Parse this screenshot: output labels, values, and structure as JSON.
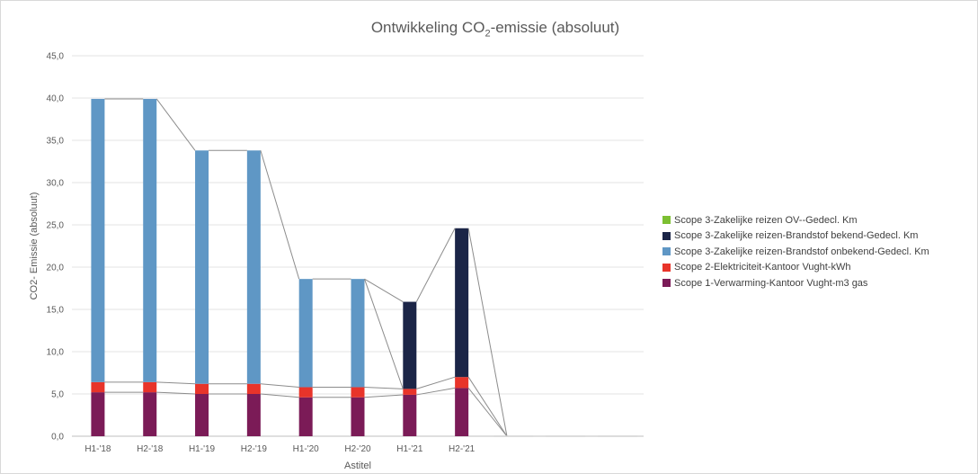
{
  "chart_data": {
    "type": "bar",
    "stacked": true,
    "title_prefix": "Ontwikkeling CO",
    "title_sub": "2",
    "title_suffix": "-emissie (absoluut)",
    "xlabel": "Astitel",
    "ylabel": "CO2- Emissie (absoluut)",
    "ylim": [
      0,
      45
    ],
    "yticks": [
      "0,0",
      "5,0",
      "10,0",
      "15,0",
      "20,0",
      "25,0",
      "30,0",
      "35,0",
      "40,0",
      "45,0"
    ],
    "grid": true,
    "legend_position": "right",
    "categories": [
      "H1-'18",
      "H2-'18",
      "H1-'19",
      "H2-'19",
      "H1-'20",
      "H2-'20",
      "H1-'21",
      "H2-'21",
      "",
      "",
      ""
    ],
    "series": [
      {
        "name": "Scope 1-Verwarming-Kantoor Vught-m3 gas",
        "color": "#7b1b57",
        "values": [
          5.2,
          5.2,
          5.0,
          5.0,
          4.6,
          4.6,
          4.9,
          5.7,
          0,
          0,
          0
        ]
      },
      {
        "name": "Scope 2-Elektriciteit-Kantoor Vught-kWh",
        "color": "#e8342a",
        "values": [
          1.2,
          1.2,
          1.2,
          1.2,
          1.2,
          1.2,
          0.7,
          1.3,
          0,
          0,
          0
        ]
      },
      {
        "name": "Scope 3-Zakelijke reizen-Brandstof onbekend-Gedecl. Km",
        "color": "#5f97c5",
        "values": [
          33.5,
          33.5,
          27.6,
          27.6,
          12.8,
          12.8,
          0,
          0,
          0,
          0,
          0
        ]
      },
      {
        "name": "Scope 3-Zakelijke reizen-Brandstof bekend-Gedecl. Km",
        "color": "#1b2547",
        "values": [
          0,
          0,
          0,
          0,
          0,
          0,
          10.3,
          17.6,
          0,
          0,
          0
        ]
      },
      {
        "name": "Scope 3-Zakelijke reizen OV--Gedecl. Km",
        "color": "#7cbf32",
        "values": [
          0,
          0,
          0,
          0,
          0,
          0,
          0,
          0,
          0,
          0,
          0
        ]
      }
    ],
    "legend_order": [
      4,
      3,
      2,
      1,
      0
    ]
  }
}
